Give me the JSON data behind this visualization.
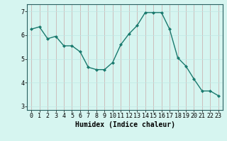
{
  "x": [
    0,
    1,
    2,
    3,
    4,
    5,
    6,
    7,
    8,
    9,
    10,
    11,
    12,
    13,
    14,
    15,
    16,
    17,
    18,
    19,
    20,
    21,
    22,
    23
  ],
  "y": [
    6.25,
    6.35,
    5.85,
    5.95,
    5.55,
    5.55,
    5.3,
    4.65,
    4.55,
    4.55,
    4.85,
    5.6,
    6.05,
    6.4,
    6.95,
    6.95,
    6.95,
    6.25,
    5.05,
    4.7,
    4.15,
    3.65,
    3.65,
    3.45
  ],
  "line_color": "#1a7a6e",
  "marker": "D",
  "marker_size": 2,
  "bg_color": "#d6f5f0",
  "grid_color_major": "#c8a8a8",
  "grid_color_minor": "#c0e8e4",
  "xlabel": "Humidex (Indice chaleur)",
  "xlim": [
    -0.5,
    23.5
  ],
  "ylim": [
    2.85,
    7.3
  ],
  "yticks": [
    3,
    4,
    5,
    6,
    7
  ],
  "xticks": [
    0,
    1,
    2,
    3,
    4,
    5,
    6,
    7,
    8,
    9,
    10,
    11,
    12,
    13,
    14,
    15,
    16,
    17,
    18,
    19,
    20,
    21,
    22,
    23
  ],
  "xlabel_fontsize": 7,
  "tick_fontsize": 6,
  "linewidth": 1.0
}
